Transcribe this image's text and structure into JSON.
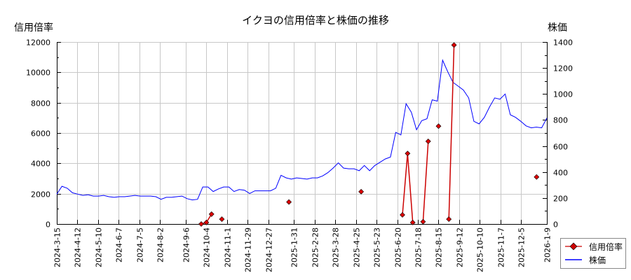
{
  "chart_data": {
    "type": "line",
    "title": "イクヨの信用倍率と株価の推移",
    "ylabel_left": "信用倍率",
    "ylabel_right": "株価",
    "ylim_left": [
      0,
      12000
    ],
    "ylim_right": [
      0,
      1400
    ],
    "yticks_left": [
      "0",
      "2000",
      "4000",
      "6000",
      "8000",
      "10000",
      "12000"
    ],
    "yticks_right": [
      "0",
      "200",
      "400",
      "600",
      "800",
      "1000",
      "1200",
      "1400"
    ],
    "xticks": [
      "2024-3-15",
      "2024-4-12",
      "2024-5-10",
      "2024-6-7",
      "2024-7-5",
      "2024-8-2",
      "2024-9-6",
      "2024-10-4",
      "2024-11-1",
      "2024-11-29",
      "2024-12-27",
      "2025-1-31",
      "2025-2-28",
      "2025-3-28",
      "2025-4-25",
      "2025-5-23",
      "2025-6-20",
      "2025-7-18",
      "2025-8-15",
      "2025-9-12",
      "2025-10-10",
      "2025-11-7",
      "2025-12-5",
      "2026-1-9"
    ],
    "grid": true,
    "legend_position": "bottom-right",
    "series": [
      {
        "name": "信用倍率",
        "axis": "left",
        "color": "#cc0000",
        "marker": "diamond",
        "points": [
          {
            "x": "2024-9-27",
            "y": 0
          },
          {
            "x": "2024-10-4",
            "y": 100
          },
          {
            "x": "2024-10-11",
            "y": 650
          },
          {
            "x": "2024-10-25",
            "y": 320
          },
          {
            "x": "2025-1-24",
            "y": 1450
          },
          {
            "x": "2025-5-2",
            "y": 2130
          },
          {
            "x": "2025-6-27",
            "y": 600
          },
          {
            "x": "2025-7-4",
            "y": 4650
          },
          {
            "x": "2025-7-11",
            "y": 100
          },
          {
            "x": "2025-7-25",
            "y": 150
          },
          {
            "x": "2025-8-1",
            "y": 5450
          },
          {
            "x": "2025-8-15",
            "y": 6450
          },
          {
            "x": "2025-8-29",
            "y": 320
          },
          {
            "x": "2025-9-5",
            "y": 11800
          },
          {
            "x": "2025-12-26",
            "y": 3100
          }
        ],
        "segments": [
          [
            0,
            1,
            2
          ],
          [
            6,
            7,
            8
          ],
          [
            9,
            10
          ],
          [
            12,
            13
          ]
        ]
      },
      {
        "name": "株価",
        "axis": "right",
        "color": "#0000ff",
        "points_px_desc": "weekly close, approx",
        "values": [
          230,
          290,
          275,
          240,
          230,
          220,
          225,
          215,
          215,
          220,
          210,
          205,
          210,
          210,
          215,
          220,
          215,
          215,
          215,
          210,
          190,
          205,
          205,
          210,
          215,
          195,
          185,
          190,
          285,
          285,
          250,
          270,
          285,
          285,
          250,
          265,
          260,
          235,
          255,
          255,
          255,
          255,
          275,
          375,
          355,
          345,
          355,
          350,
          345,
          355,
          355,
          370,
          395,
          430,
          470,
          430,
          425,
          425,
          410,
          450,
          410,
          450,
          475,
          500,
          515,
          705,
          685,
          925,
          860,
          725,
          795,
          810,
          955,
          945,
          1260,
          1170,
          1090,
          1060,
          1030,
          970,
          790,
          770,
          820,
          900,
          970,
          960,
          1000,
          840,
          820,
          790,
          755,
          740,
          745,
          740,
          815
        ]
      }
    ]
  },
  "legend": {
    "items": [
      {
        "label": "信用倍率",
        "color": "#cc0000",
        "icon": "red-diamond-line"
      },
      {
        "label": "株価",
        "color": "#0000ff",
        "icon": "blue-line"
      }
    ]
  }
}
